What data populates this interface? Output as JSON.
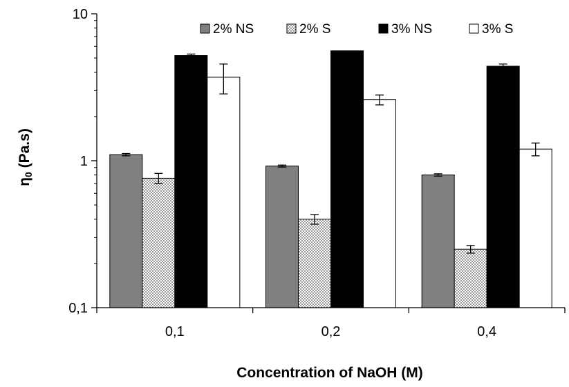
{
  "chart_data": {
    "type": "bar",
    "title": "",
    "xlabel": "Concentration of NaOH (M)",
    "ylabel": "η0 (Pa.s)",
    "ylabel_main": "η",
    "ylabel_sub": "0",
    "ylabel_unit": " (Pa.s)",
    "y_scale": "log",
    "ylim": [
      0.1,
      10
    ],
    "y_ticks": [
      {
        "value": 0.1,
        "label": "0,1"
      },
      {
        "value": 1,
        "label": "1"
      },
      {
        "value": 10,
        "label": "10"
      }
    ],
    "categories": [
      "0,1",
      "0,2",
      "0,4"
    ],
    "legend_position": "top-right",
    "grid": false,
    "series": [
      {
        "name": "2% NS",
        "values": [
          1.1,
          0.92,
          0.8
        ],
        "errors": [
          0.02,
          0.015,
          0.015
        ],
        "fill": "#808080",
        "pattern": "solid"
      },
      {
        "name": "2% S",
        "values": [
          0.76,
          0.4,
          0.25
        ],
        "errors": [
          0.06,
          0.03,
          0.015
        ],
        "fill": "#e6e6e6",
        "pattern": "dots"
      },
      {
        "name": "3% NS",
        "values": [
          5.2,
          5.6,
          4.4
        ],
        "errors": [
          0.12,
          0,
          0.15
        ],
        "fill": "#000000",
        "pattern": "solid"
      },
      {
        "name": "3% S",
        "values": [
          3.7,
          2.6,
          1.2
        ],
        "errors": [
          0.85,
          0.2,
          0.12
        ],
        "fill": "#ffffff",
        "pattern": "solid"
      }
    ]
  }
}
